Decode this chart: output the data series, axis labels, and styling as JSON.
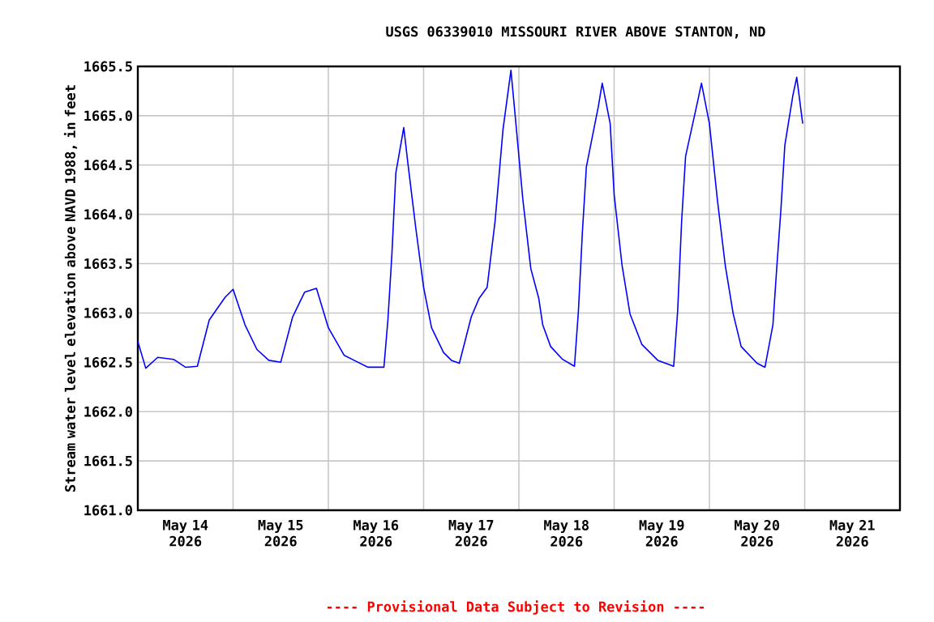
{
  "chart_data": {
    "type": "line",
    "title": "USGS 06339010 MISSOURI RIVER ABOVE STANTON, ND",
    "ylabel": "Stream water level elevation above NAVD 1988, in feet",
    "annotations": [
      "---- Provisional Data Subject to Revision ----"
    ],
    "x": [
      "2026-05-14T00:00",
      "2026-05-14T02:00",
      "2026-05-14T05:00",
      "2026-05-14T09:00",
      "2026-05-14T12:00",
      "2026-05-14T15:00",
      "2026-05-14T18:00",
      "2026-05-14T22:00",
      "2026-05-15T00:00",
      "2026-05-15T03:00",
      "2026-05-15T06:00",
      "2026-05-15T09:00",
      "2026-05-15T12:00",
      "2026-05-15T15:00",
      "2026-05-15T18:00",
      "2026-05-15T21:00",
      "2026-05-16T00:00",
      "2026-05-16T04:00",
      "2026-05-16T07:00",
      "2026-05-16T10:00",
      "2026-05-16T14:00",
      "2026-05-16T15:00",
      "2026-05-16T16:00",
      "2026-05-16T17:00",
      "2026-05-16T19:00",
      "2026-05-16T20:00",
      "2026-05-16T22:00",
      "2026-05-17T00:00",
      "2026-05-17T02:00",
      "2026-05-17T05:00",
      "2026-05-17T07:00",
      "2026-05-17T09:00",
      "2026-05-17T12:00",
      "2026-05-17T14:00",
      "2026-05-17T16:00",
      "2026-05-17T18:00",
      "2026-05-17T20:00",
      "2026-05-17T22:00",
      "2026-05-17T23:00",
      "2026-05-18T01:00",
      "2026-05-18T03:00",
      "2026-05-18T05:00",
      "2026-05-18T06:00",
      "2026-05-18T08:00",
      "2026-05-18T11:00",
      "2026-05-18T14:00",
      "2026-05-18T15:00",
      "2026-05-18T16:00",
      "2026-05-18T17:00",
      "2026-05-18T20:00",
      "2026-05-18T21:00",
      "2026-05-18T23:00",
      "2026-05-19T00:00",
      "2026-05-19T02:00",
      "2026-05-19T04:00",
      "2026-05-19T07:00",
      "2026-05-19T11:00",
      "2026-05-19T15:00",
      "2026-05-19T16:00",
      "2026-05-19T17:00",
      "2026-05-19T18:00",
      "2026-05-19T21:00",
      "2026-05-19T22:00",
      "2026-05-20T00:00",
      "2026-05-20T02:00",
      "2026-05-20T04:00",
      "2026-05-20T06:00",
      "2026-05-20T08:00",
      "2026-05-20T12:00",
      "2026-05-20T14:00",
      "2026-05-20T16:00",
      "2026-05-20T17:00",
      "2026-05-20T18:00",
      "2026-05-20T19:00",
      "2026-05-20T21:00",
      "2026-05-20T22:00",
      "2026-05-20T23:30"
    ],
    "series": [
      {
        "color": "#0000ff",
        "values": [
          1662.71,
          1662.44,
          1662.55,
          1662.53,
          1662.45,
          1662.46,
          1662.93,
          1663.16,
          1663.24,
          1662.88,
          1662.63,
          1662.52,
          1662.5,
          1662.96,
          1663.21,
          1663.25,
          1662.85,
          1662.57,
          1662.51,
          1662.45,
          1662.45,
          1662.93,
          1663.59,
          1664.42,
          1664.88,
          1664.53,
          1663.87,
          1663.26,
          1662.85,
          1662.6,
          1662.52,
          1662.49,
          1662.96,
          1663.15,
          1663.26,
          1663.93,
          1664.86,
          1665.46,
          1665.03,
          1664.15,
          1663.45,
          1663.15,
          1662.88,
          1662.66,
          1662.53,
          1662.46,
          1663.02,
          1663.82,
          1664.48,
          1665.09,
          1665.33,
          1664.92,
          1664.2,
          1663.48,
          1662.99,
          1662.68,
          1662.52,
          1662.46,
          1663.02,
          1663.93,
          1664.59,
          1665.14,
          1665.33,
          1664.92,
          1664.15,
          1663.48,
          1662.99,
          1662.66,
          1662.49,
          1662.45,
          1662.88,
          1663.48,
          1664.04,
          1664.7,
          1665.2,
          1665.39,
          1664.92
        ]
      }
    ],
    "xlim": [
      "2026-05-14",
      "2026-05-22"
    ],
    "xticks": [
      {
        "value": "2026-05-15",
        "label": null
      },
      {
        "value": "2026-05-16",
        "label": null
      },
      {
        "value": "2026-05-17",
        "label": null
      },
      {
        "value": "2026-05-18",
        "label": null
      },
      {
        "value": "2026-05-19",
        "label": null
      },
      {
        "value": "2026-05-20",
        "label": null
      },
      {
        "value": "2026-05-21",
        "label": null
      },
      {
        "value": "2026-05-14T12:00",
        "label": "May 14 2026"
      },
      {
        "value": "2026-05-15T12:00",
        "label": "May 15 2026"
      },
      {
        "value": "2026-05-16T12:00",
        "label": "May 16 2026"
      },
      {
        "value": "2026-05-17T12:00",
        "label": "May 17 2026"
      },
      {
        "value": "2026-05-18T12:00",
        "label": "May 18 2026"
      },
      {
        "value": "2026-05-19T12:00",
        "label": "May 19 2026"
      },
      {
        "value": "2026-05-20T12:00",
        "label": "May 20 2026"
      },
      {
        "value": "2026-05-21T12:00",
        "label": "May 21 2026"
      }
    ],
    "ylim": [
      1661.0,
      1665.5
    ],
    "yticks": [
      {
        "value": 1661.0,
        "label": "1661.0"
      },
      {
        "value": 1661.5,
        "label": "1661.5"
      },
      {
        "value": 1662.0,
        "label": "1662.0"
      },
      {
        "value": 1662.5,
        "label": "1662.5"
      },
      {
        "value": 1663.0,
        "label": "1663.0"
      },
      {
        "value": 1663.5,
        "label": "1663.5"
      },
      {
        "value": 1664.0,
        "label": "1664.0"
      },
      {
        "value": 1664.5,
        "label": "1664.5"
      },
      {
        "value": 1665.0,
        "label": "1665.0"
      },
      {
        "value": 1665.5,
        "label": "1665.5"
      }
    ],
    "grid": true,
    "marker": "none",
    "line_style": "solid"
  }
}
